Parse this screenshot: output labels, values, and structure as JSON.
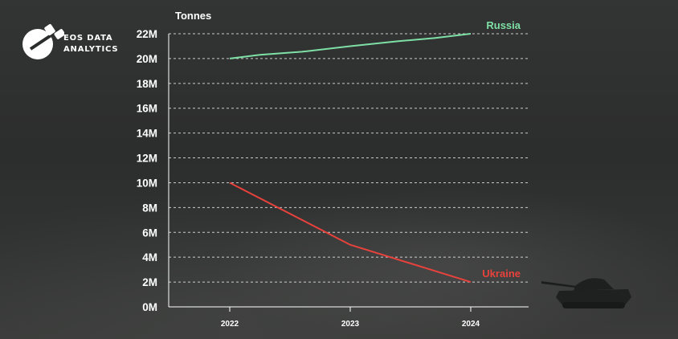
{
  "brand": {
    "line1": "EOS DATA",
    "line2": "ANALYTICS"
  },
  "chart_data": {
    "type": "line",
    "ylabel": "Tonnes",
    "x": [
      "2022",
      "2023",
      "2024"
    ],
    "ylim": [
      0,
      22000000
    ],
    "y_ticks": [
      "0M",
      "2M",
      "4M",
      "6M",
      "8M",
      "10M",
      "12M",
      "14M",
      "16M",
      "18M",
      "20M",
      "22M"
    ],
    "grid": "horizontal-dashed",
    "series": [
      {
        "name": "Russia",
        "color": "#7fe0a6",
        "points": [
          {
            "x": "2022",
            "y": 20000000
          },
          {
            "x": "2022.25",
            "y": 20300000
          },
          {
            "x": "2022.6",
            "y": 20550000
          },
          {
            "x": "2023",
            "y": 21000000
          },
          {
            "x": "2023.4",
            "y": 21400000
          },
          {
            "x": "2023.7",
            "y": 21650000
          },
          {
            "x": "2024",
            "y": 22000000
          }
        ]
      },
      {
        "name": "Ukraine",
        "color": "#e8423c",
        "points": [
          {
            "x": "2022",
            "y": 10000000
          },
          {
            "x": "2023",
            "y": 5000000
          },
          {
            "x": "2024",
            "y": 2000000
          }
        ]
      }
    ]
  }
}
